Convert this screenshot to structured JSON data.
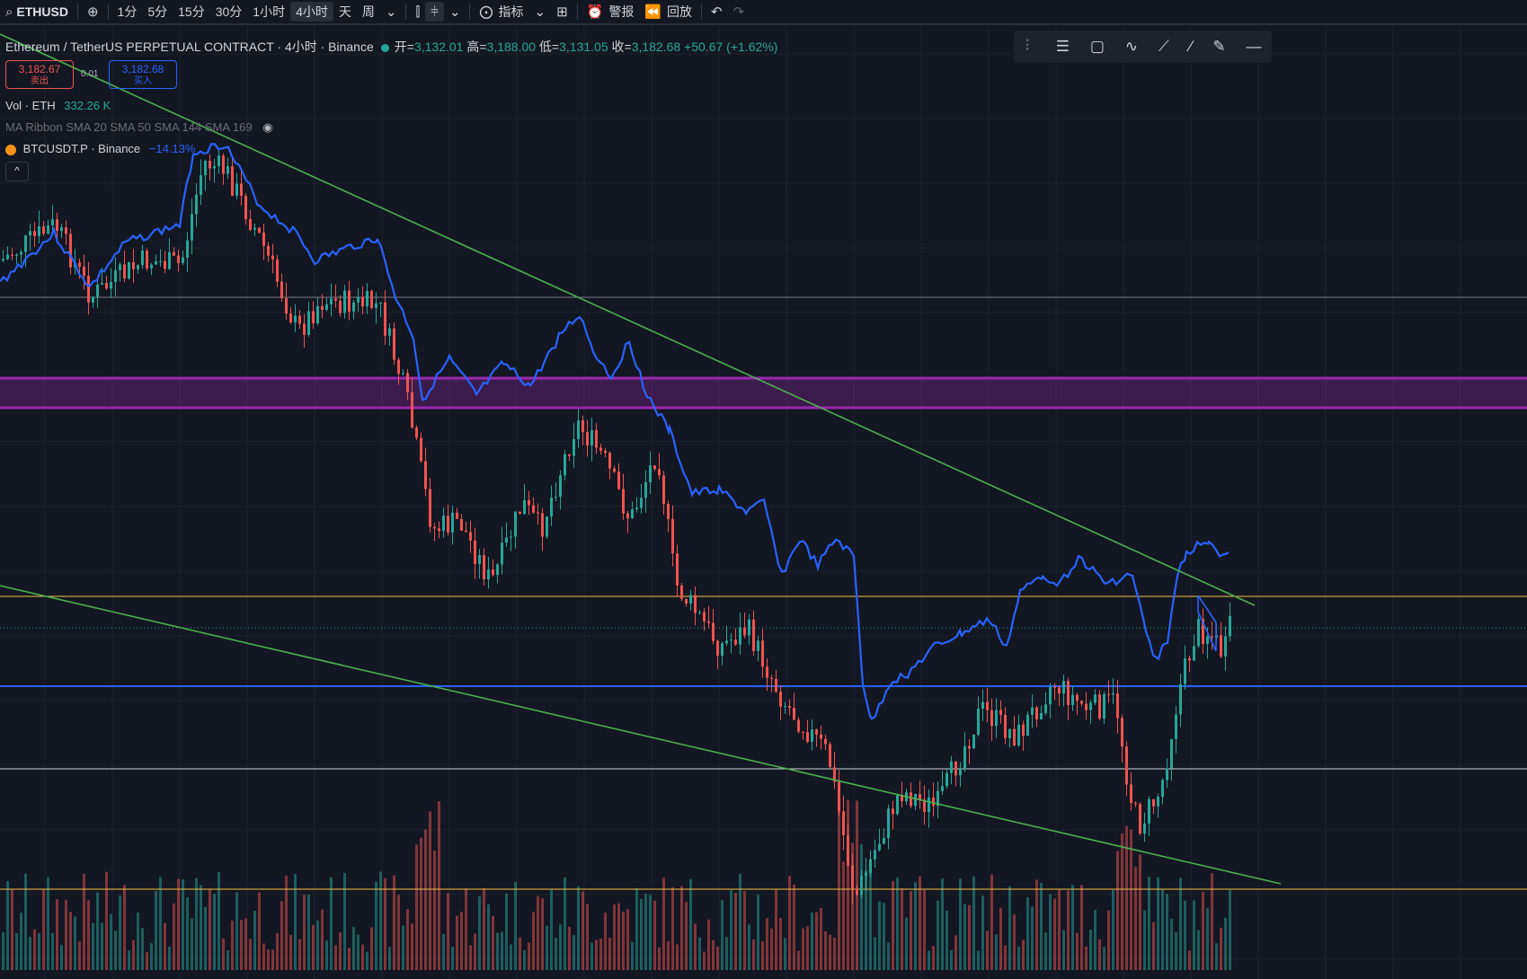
{
  "toolbar": {
    "symbol": "ETHUSD",
    "intervals": [
      "1分",
      "5分",
      "15分",
      "30分",
      "1小时",
      "4小时",
      "天",
      "周"
    ],
    "active_interval": "4小时",
    "indicators_label": "指标",
    "alert_label": "警报",
    "replay_label": "回放"
  },
  "legend": {
    "title": "Ethereum / TetherUS PERPETUAL CONTRACT · 4小时 · Binance",
    "open_label": "开=",
    "open": "3,132.01",
    "high_label": "高=",
    "high": "3,188.00",
    "low_label": "低=",
    "low": "3,131.05",
    "close_label": "收=",
    "close": "3,182.68",
    "change": "+50.67 (+1.62%)"
  },
  "trade": {
    "sell_price": "3,182.67",
    "sell_label": "卖出",
    "spread": "0.01",
    "buy_price": "3,182.68",
    "buy_label": "买入"
  },
  "volume": {
    "label": "Vol · ETH",
    "value": "332.26 K"
  },
  "ma_ribbon": {
    "label": "MA Ribbon SMA 20 SMA 50 SMA 144 SMA 169"
  },
  "compare": {
    "label": "BTCUSDT.P · Binance",
    "value": "−14.13%"
  },
  "colors": {
    "up": "#26a69a",
    "down": "#ef5350",
    "compare_line": "#2962ff",
    "trend_line": "#4caf50",
    "zone": "#9c27b0",
    "yellow_line": "#f5c242",
    "blue_line": "#2962ff"
  },
  "icons": [
    "search-icon",
    "plus-circle-icon",
    "chevron-down-icon",
    "bar-style-icon",
    "candles-icon",
    "indicators-icon",
    "layout-grid-icon",
    "alarm-icon",
    "replay-icon",
    "undo-icon",
    "redo-icon",
    "drag-handle-icon",
    "lines-icon",
    "rectangle-icon",
    "path-icon",
    "trend-icon",
    "ray-icon",
    "pen-icon",
    "horizontal-ray-icon",
    "eye-off-icon"
  ]
}
